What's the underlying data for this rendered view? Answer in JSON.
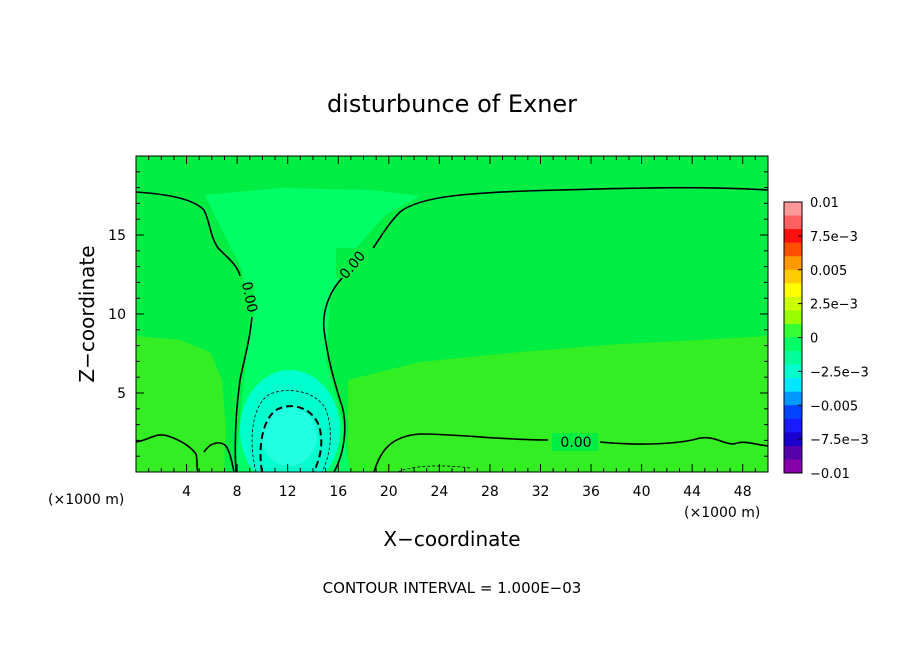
{
  "chart_data": {
    "type": "heatmap",
    "title": "disturbunce of Exner",
    "xlabel": "X−coordinate",
    "ylabel": "Z−coordinate",
    "x_unit_left": "(×1000 m)",
    "x_unit_right": "(×1000 m)",
    "xlim": [
      0,
      50
    ],
    "ylim": [
      0,
      20
    ],
    "x_ticks": [
      4,
      8,
      12,
      16,
      20,
      24,
      28,
      32,
      36,
      40,
      44,
      48
    ],
    "y_ticks": [
      5,
      10,
      15
    ],
    "footer": "CONTOUR INTERVAL = 1.000E−03",
    "colorbar": {
      "range": [
        -0.01,
        0.01
      ],
      "tick_labels": [
        "0.01",
        "7.5e−3",
        "0.005",
        "2.5e−3",
        "0",
        "−2.5e−3",
        "−0.005",
        "−7.5e−3",
        "−0.01"
      ],
      "colors": [
        "#ff9999",
        "#ff6060",
        "#ff1010",
        "#ff5000",
        "#ff9900",
        "#ffcc00",
        "#ffff00",
        "#ccff00",
        "#99ff00",
        "#33ff33",
        "#00ff66",
        "#00ff99",
        "#00ffcc",
        "#00e6ff",
        "#0099ff",
        "#0044ff",
        "#1a1aff",
        "#1a00cc",
        "#5500aa",
        "#8800aa"
      ]
    },
    "contours": [
      {
        "label": "0.00",
        "style": "solid"
      },
      {
        "label": "0.00",
        "style": "solid"
      },
      {
        "label": "0.00",
        "style": "solid"
      }
    ],
    "field_colors": {
      "background": "#00ee44",
      "positive": "#33ee22",
      "weak_negative": "#00ff66",
      "core": "#00ffcc",
      "core_center": "#22ffe0"
    }
  }
}
